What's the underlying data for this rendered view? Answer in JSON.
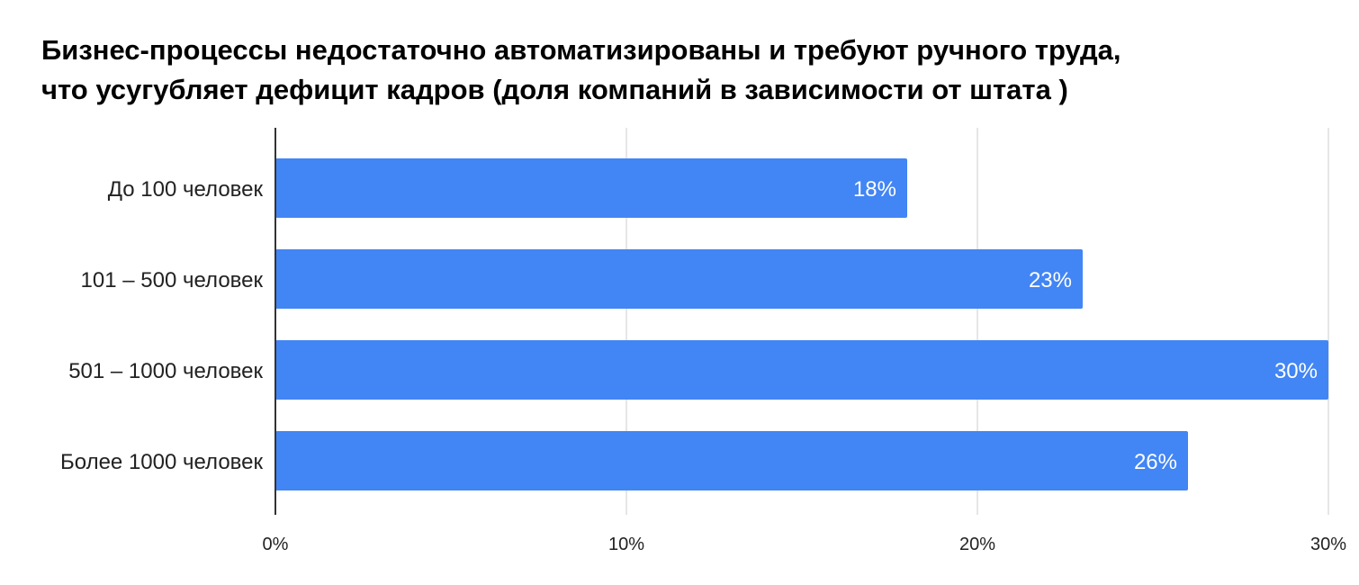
{
  "chart_data": {
    "type": "bar",
    "orientation": "horizontal",
    "title_lines": [
      "Бизнес-процессы недостаточно автоматизированы и требуют ручного труда,",
      "что усугубляет дефицит кадров (доля компаний в зависимости от штата )"
    ],
    "categories": [
      "До 100 человек",
      "101 – 500 человек",
      "501 – 1000 человек",
      "Более 1000 человек"
    ],
    "values": [
      18,
      23,
      30,
      26
    ],
    "data_labels": [
      "18%",
      "23%",
      "30%",
      "26%"
    ],
    "xlim": [
      0,
      30
    ],
    "x_ticks": [
      0,
      10,
      20,
      30
    ],
    "x_tick_labels": [
      "0%",
      "10%",
      "20%",
      "30%"
    ],
    "grid": true,
    "legend": "none",
    "colors": {
      "bar": "#4285f4",
      "grid": "#cccccc",
      "axis": "#333333"
    }
  }
}
